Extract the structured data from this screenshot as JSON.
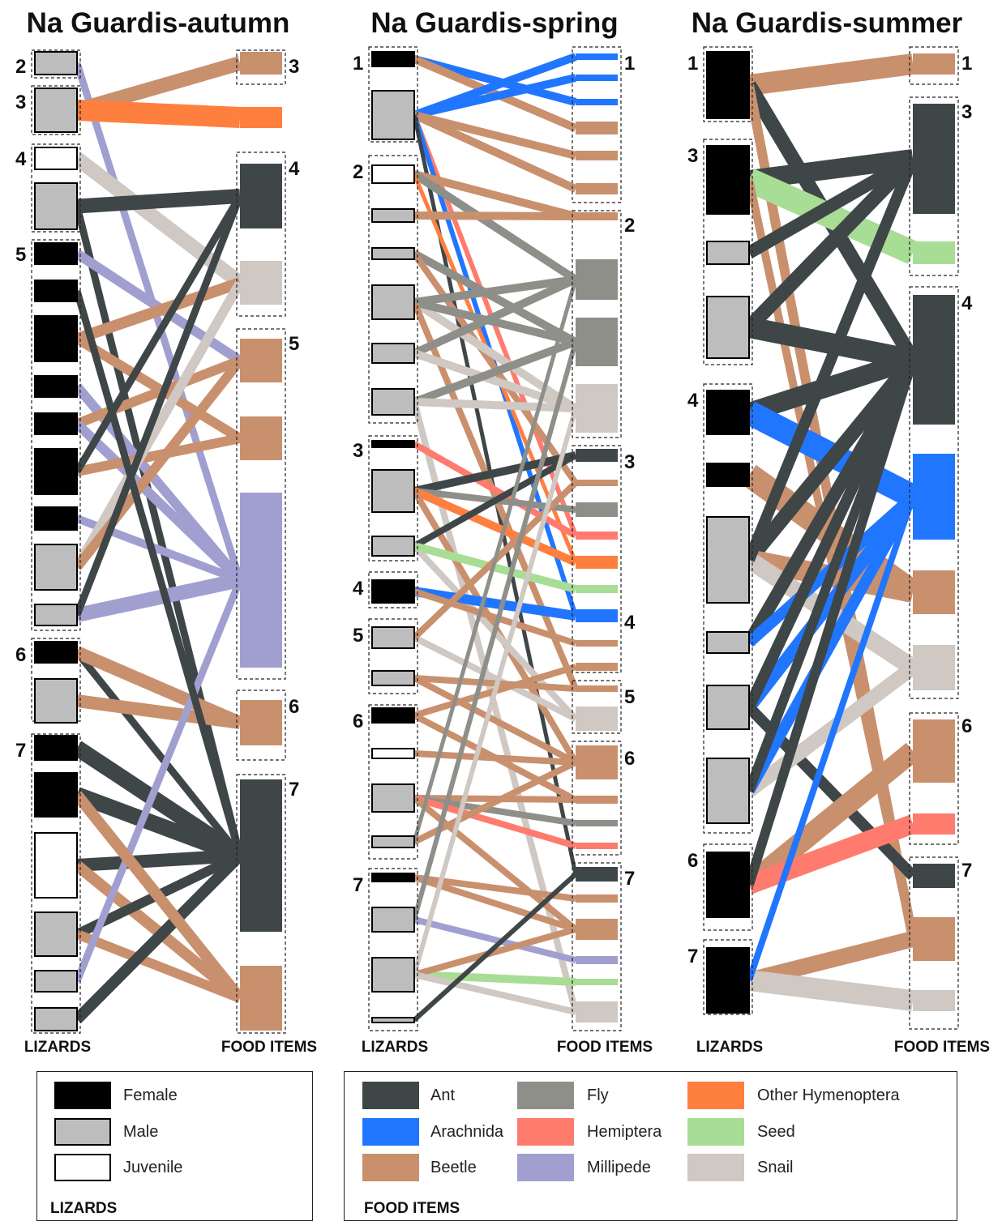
{
  "colors": {
    "female": "#000000",
    "male": "#bdbdbd",
    "juvenile": "#ffffff",
    "Ant": "#3f4648",
    "Arachnida": "#2176ff",
    "Beetle": "#c9906e",
    "Fly": "#8f8f8a",
    "Hemiptera": "#ff7b6e",
    "Millipede": "#a19fd0",
    "Other Hymenoptera": "#ff7f3f",
    "Seed": "#a8dd95",
    "Snail": "#cfc8c3"
  },
  "panels": [
    {
      "title": "Na Guardis-autumn",
      "left_label": "LIZARDS",
      "right_label": "FOOD ITEMS",
      "lizard_groups": [
        "2",
        "3",
        "4",
        "5",
        "6",
        "7"
      ],
      "food_groups": [
        "3",
        "4",
        "5",
        "6",
        "7"
      ]
    },
    {
      "title": "Na Guardis-spring",
      "left_label": "LIZARDS",
      "right_label": "FOOD ITEMS",
      "lizard_groups": [
        "1",
        "2",
        "3",
        "4",
        "5",
        "6",
        "7"
      ],
      "food_groups": [
        "1",
        "2",
        "3",
        "4",
        "5",
        "6",
        "7"
      ]
    },
    {
      "title": "Na Guardis-summer",
      "left_label": "LIZARDS",
      "right_label": "FOOD ITEMS",
      "lizard_groups": [
        "1",
        "3",
        "4",
        "6",
        "7"
      ],
      "food_groups": [
        "1",
        "3",
        "4",
        "6",
        "7"
      ]
    }
  ],
  "legend_lizards": {
    "header": "LIZARDS",
    "items": [
      {
        "label": "Female",
        "color": "#000000"
      },
      {
        "label": "Male",
        "color": "#bdbdbd"
      },
      {
        "label": "Juvenile",
        "color": "#ffffff"
      }
    ]
  },
  "legend_food": {
    "header": "FOOD ITEMS",
    "items": [
      {
        "label": "Ant",
        "color": "#3f4648"
      },
      {
        "label": "Arachnida",
        "color": "#2176ff"
      },
      {
        "label": "Beetle",
        "color": "#c9906e"
      },
      {
        "label": "Fly",
        "color": "#8f8f8a"
      },
      {
        "label": "Hemiptera",
        "color": "#ff7b6e"
      },
      {
        "label": "Millipede",
        "color": "#a19fd0"
      },
      {
        "label": "Other Hymenoptera",
        "color": "#ff7f3f"
      },
      {
        "label": "Seed",
        "color": "#a8dd95"
      },
      {
        "label": "Snail",
        "color": "#cfc8c3"
      }
    ]
  }
}
